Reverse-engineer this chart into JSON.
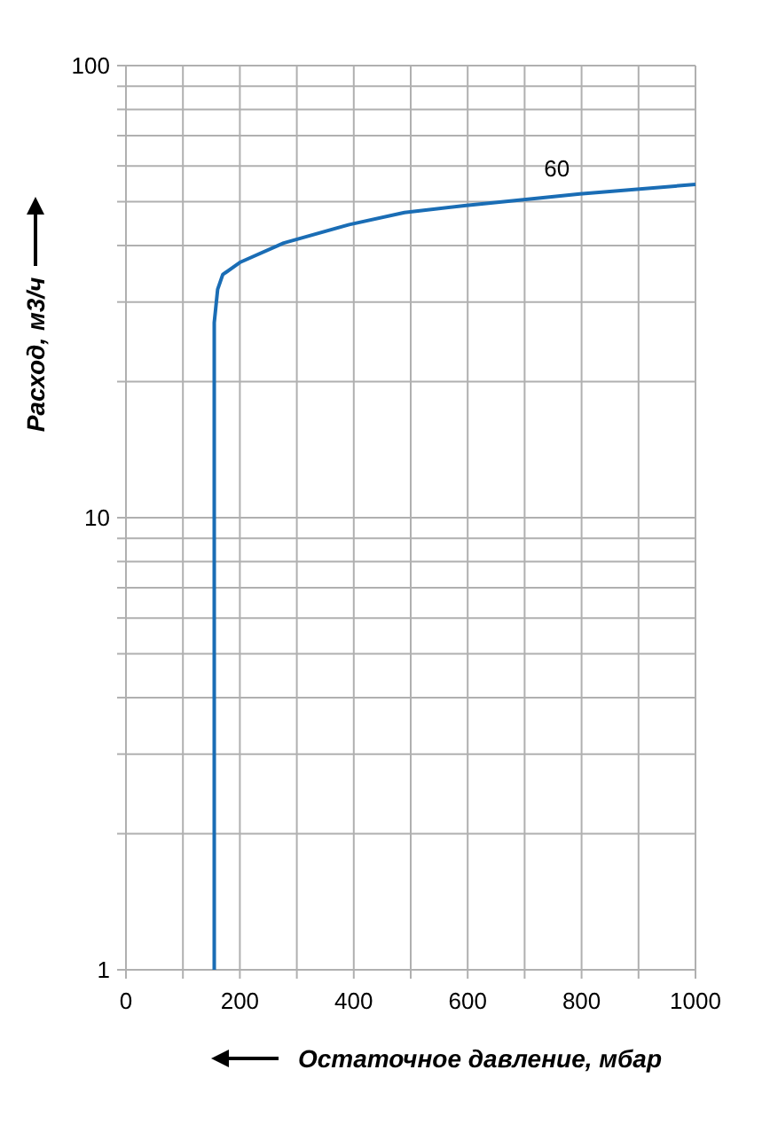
{
  "chart_data": {
    "type": "line",
    "xlabel": "Остаточное давление, мбар",
    "ylabel": "Расход, м3/ч",
    "log": "y",
    "grid": true,
    "marker": "none",
    "line_style": "solid",
    "xlim": [
      0,
      1000
    ],
    "ylim": [
      1,
      100
    ],
    "xticks": [
      0,
      {
        "value": 100,
        "label": null
      },
      200,
      {
        "value": 300,
        "label": null
      },
      400,
      {
        "value": 500,
        "label": null
      },
      600,
      {
        "value": 700,
        "label": null
      },
      800,
      {
        "value": 900,
        "label": null
      },
      1000
    ],
    "yticks": [
      1,
      {
        "value": 2,
        "label": null
      },
      {
        "value": 3,
        "label": null
      },
      {
        "value": 4,
        "label": null
      },
      {
        "value": 5,
        "label": null
      },
      {
        "value": 6,
        "label": null
      },
      {
        "value": 7,
        "label": null
      },
      {
        "value": 8,
        "label": null
      },
      {
        "value": 9,
        "label": null
      },
      10,
      {
        "value": 20,
        "label": null
      },
      {
        "value": 30,
        "label": null
      },
      {
        "value": 40,
        "label": null
      },
      {
        "value": 50,
        "label": null
      },
      {
        "value": 60,
        "label": null
      },
      {
        "value": 70,
        "label": null
      },
      {
        "value": 80,
        "label": null
      },
      {
        "value": 90,
        "label": null
      },
      100
    ],
    "series": [
      {
        "name": "60",
        "color": "#1a6db5",
        "x": [
          155,
          155,
          161,
          170,
          200,
          277,
          392,
          489,
          594,
          698,
          797,
          1000
        ],
        "values": [
          1,
          27,
          32,
          34.5,
          36.7,
          40.5,
          44.5,
          47.3,
          49,
          50.5,
          52,
          54.6
        ]
      }
    ]
  }
}
